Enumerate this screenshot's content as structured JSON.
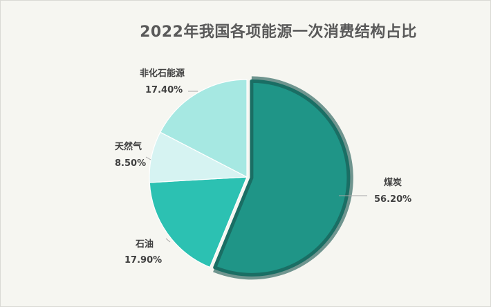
{
  "chart_data": {
    "type": "pie",
    "title": "2022年我国各项能源一次消费结构占比",
    "start_angle_deg": 0,
    "direction": "clockwise",
    "exploded": "煤炭",
    "slices": [
      {
        "name": "煤炭",
        "value": 56.2,
        "label": "56.20%",
        "color": "#1f9587",
        "border": "#1a6e64"
      },
      {
        "name": "石油",
        "value": 17.9,
        "label": "17.90%",
        "color": "#2cc1b2"
      },
      {
        "name": "天然气",
        "value": 8.5,
        "label": "8.50%",
        "color": "#d6f3f2"
      },
      {
        "name": "非化石能源",
        "value": 17.4,
        "label": "17.40%",
        "color": "#a6e8e2"
      }
    ]
  }
}
